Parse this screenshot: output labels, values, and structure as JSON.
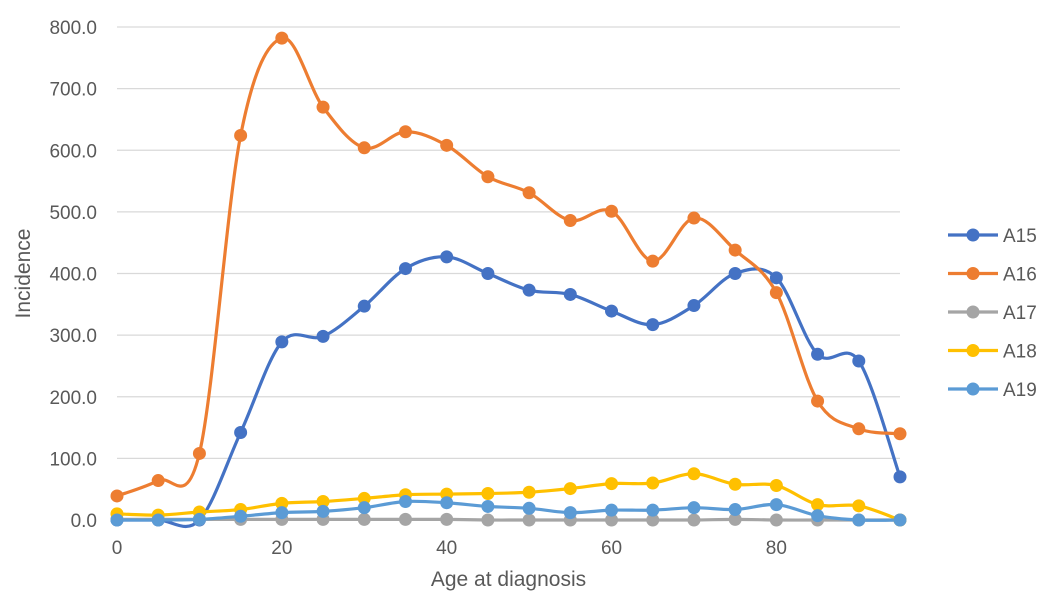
{
  "chart_data": {
    "type": "line",
    "title": "",
    "xlabel": "Age at diagnosis",
    "ylabel": "Incidence",
    "xlim": [
      0,
      95
    ],
    "ylim": [
      0,
      800
    ],
    "x_ticks": [
      0,
      20,
      40,
      60,
      80
    ],
    "y_ticks": [
      0,
      100,
      200,
      300,
      400,
      500,
      600,
      700,
      800
    ],
    "y_tick_labels": [
      "0.0",
      "100.0",
      "200.0",
      "300.0",
      "400.0",
      "500.0",
      "600.0",
      "700.0",
      "800.0"
    ],
    "grid": true,
    "legend_position": "right",
    "smooth": true,
    "x": [
      0,
      5,
      10,
      15,
      20,
      25,
      30,
      35,
      40,
      45,
      50,
      55,
      60,
      65,
      70,
      75,
      80,
      85,
      90,
      95
    ],
    "series": [
      {
        "name": "A15",
        "color": "#4472c4",
        "values": [
          0,
          0,
          0,
          142,
          289,
          298,
          347,
          408,
          427,
          400,
          373,
          366,
          339,
          317,
          348,
          400,
          393,
          269,
          258,
          70
        ]
      },
      {
        "name": "A16",
        "color": "#ed7d31",
        "values": [
          39,
          64,
          108,
          624,
          782,
          670,
          604,
          630,
          608,
          557,
          531,
          486,
          501,
          420,
          490,
          438,
          369,
          193,
          148,
          140
        ]
      },
      {
        "name": "A17",
        "color": "#a5a5a5",
        "values": [
          1,
          1,
          1,
          1,
          1,
          1,
          1,
          1,
          1,
          0,
          0,
          0,
          0,
          0,
          0,
          1,
          0,
          0,
          0,
          0
        ]
      },
      {
        "name": "A18",
        "color": "#ffc000",
        "values": [
          10,
          8,
          13,
          17,
          27,
          30,
          35,
          41,
          42,
          43,
          45,
          51,
          59,
          60,
          75,
          58,
          56,
          25,
          23,
          0
        ]
      },
      {
        "name": "A19",
        "color": "#5b9bd5",
        "values": [
          0,
          0,
          1,
          6,
          12,
          14,
          20,
          30,
          28,
          22,
          19,
          12,
          16,
          16,
          20,
          17,
          25,
          7,
          0,
          0
        ]
      }
    ]
  }
}
